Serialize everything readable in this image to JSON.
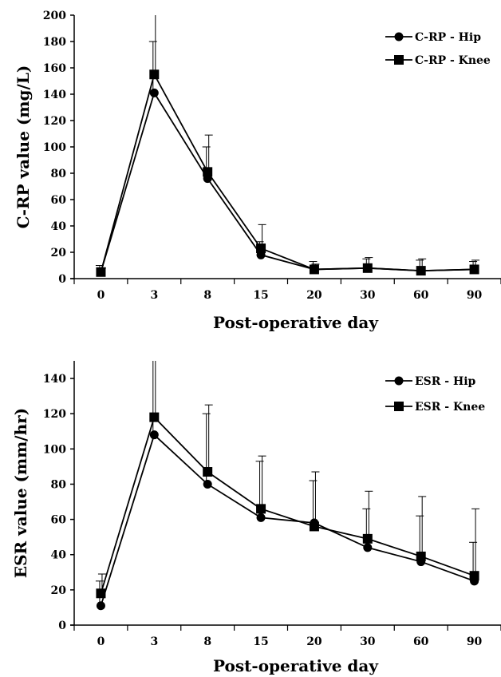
{
  "chart_data": [
    {
      "type": "line",
      "categories": [
        "0",
        "3",
        "8",
        "15",
        "20",
        "30",
        "60",
        "90"
      ],
      "xlabel": "Post-operative day",
      "ylabel": "C-RP value (mg/L)",
      "ylim": [
        0,
        200
      ],
      "yticks": [
        0,
        20,
        40,
        60,
        80,
        100,
        120,
        140,
        160,
        180,
        200
      ],
      "grid": false,
      "legend_position": "top-right",
      "series": [
        {
          "name": "C-RP - Hip",
          "marker": "circle",
          "values": [
            5,
            141,
            76,
            18,
            7,
            8,
            6,
            7
          ],
          "error_upper": [
            10,
            180,
            100,
            28,
            13,
            15,
            14,
            13
          ]
        },
        {
          "name": "C-RP - Knee",
          "marker": "square",
          "values": [
            5,
            155,
            81,
            23,
            7,
            8,
            6,
            7
          ],
          "error_upper": [
            8,
            200,
            109,
            41,
            11,
            16,
            15,
            14
          ]
        }
      ]
    },
    {
      "type": "line",
      "categories": [
        "0",
        "3",
        "8",
        "15",
        "20",
        "30",
        "60",
        "90"
      ],
      "xlabel": "Post-operative day",
      "ylabel": "ESR value (mm/hr)",
      "ylim": [
        0,
        150
      ],
      "yticks": [
        0,
        20,
        40,
        60,
        80,
        100,
        120,
        140
      ],
      "grid": false,
      "legend_position": "top-right",
      "series": [
        {
          "name": "ESR - Hip",
          "marker": "circle",
          "values": [
            11,
            108,
            80,
            61,
            58,
            44,
            36,
            25
          ],
          "error_upper": [
            25,
            150,
            120,
            93,
            82,
            66,
            62,
            47
          ]
        },
        {
          "name": "ESR - Knee",
          "marker": "square",
          "values": [
            18,
            118,
            87,
            66,
            56,
            49,
            39,
            28
          ],
          "error_upper": [
            29,
            150,
            125,
            96,
            87,
            76,
            73,
            66
          ]
        }
      ]
    }
  ]
}
